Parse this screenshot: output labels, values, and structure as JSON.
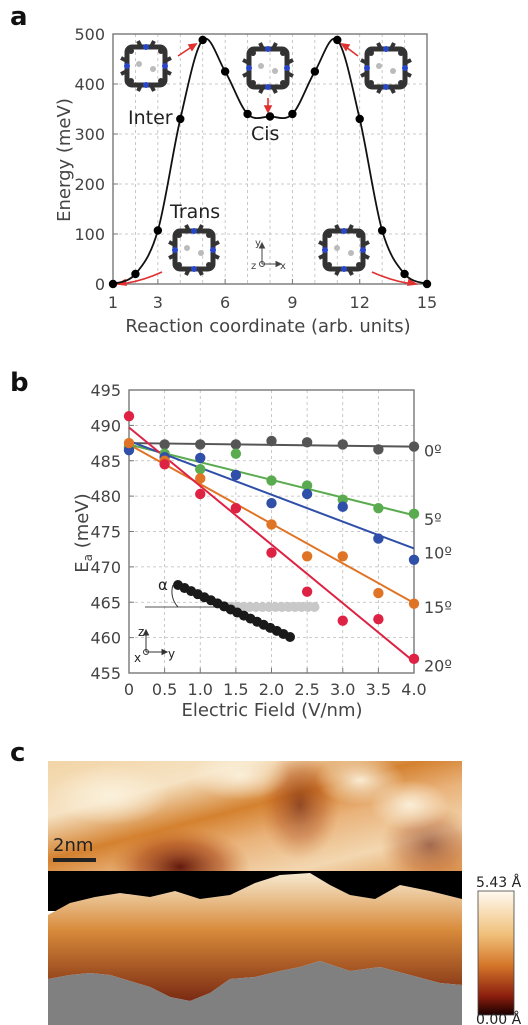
{
  "figure": {
    "labels": {
      "a": "a",
      "b": "b",
      "c": "c"
    }
  },
  "chart_data": [
    {
      "type": "line",
      "panel": "a",
      "xlabel": "Reaction coordinate (arb. units)",
      "ylabel": "Energy  (meV)",
      "xticks": [
        "1",
        "3",
        "6",
        "9",
        "12",
        "15"
      ],
      "yticks": [
        "0",
        "100",
        "200",
        "300",
        "400",
        "500"
      ],
      "xlim": [
        1,
        15
      ],
      "ylim": [
        0,
        500
      ],
      "grid": true,
      "x": [
        1,
        2,
        3,
        4,
        5,
        6,
        7,
        8,
        9,
        10,
        11,
        12,
        13,
        14,
        15
      ],
      "values": [
        0,
        20,
        107,
        330,
        488,
        425,
        340,
        335,
        340,
        425,
        488,
        330,
        107,
        20,
        0
      ],
      "annotations": {
        "inter": "Inter",
        "cis": "Cis",
        "trans": "Trans"
      },
      "axes_glyph": {
        "y": "y",
        "z": "z",
        "x": "x"
      }
    },
    {
      "type": "scatter",
      "panel": "b",
      "xlabel": "Electric Field (V/nm)",
      "ylabel": "E",
      "ylabel_sub": "a",
      "ylabel_unit": " (meV)",
      "xticks": [
        "0",
        "0.5",
        "1.0",
        "1.5",
        "2.0",
        "2.5",
        "3.0",
        "3.5",
        "4.0"
      ],
      "yticks": [
        "455",
        "460",
        "465",
        "470",
        "475",
        "480",
        "485",
        "490",
        "495"
      ],
      "xlim": [
        0,
        4
      ],
      "ylim": [
        455,
        495
      ],
      "grid": true,
      "x": [
        0,
        0.5,
        1.0,
        1.5,
        2.0,
        2.5,
        3.0,
        3.5,
        4.0
      ],
      "series": [
        {
          "name": "0º",
          "color": "#555555",
          "values": [
            486.8,
            487.3,
            487.3,
            487.3,
            487.8,
            487.6,
            487.3,
            486.6,
            487.0
          ],
          "fit": [
            487.5,
            487.0
          ]
        },
        {
          "name": "5º",
          "color": "#5aab4f",
          "values": [
            487.0,
            486.0,
            483.8,
            486.0,
            482.2,
            481.5,
            479.5,
            478.3,
            477.5
          ],
          "fit": [
            487.3,
            477.3
          ]
        },
        {
          "name": "10º",
          "color": "#2f4fa8",
          "values": [
            486.5,
            485.5,
            485.4,
            483.0,
            479.0,
            480.3,
            478.5,
            474.0,
            471.0
          ],
          "fit": [
            487.8,
            472.6
          ]
        },
        {
          "name": "15º",
          "color": "#e07426",
          "values": [
            487.5,
            485.0,
            482.5,
            478.3,
            476.0,
            471.5,
            471.5,
            466.3,
            464.8
          ],
          "fit": [
            487.3,
            464.9
          ]
        },
        {
          "name": "20º",
          "color": "#dd2244",
          "values": [
            491.3,
            484.5,
            480.3,
            478.3,
            472.0,
            466.5,
            462.4,
            462.6,
            457.0
          ],
          "fit": [
            489.7,
            456.6
          ]
        }
      ],
      "inset": {
        "alpha": "α",
        "z": "z",
        "x": "x",
        "y": "y"
      }
    },
    {
      "type": "heatmap",
      "panel": "c",
      "scalebar": "2nm",
      "colorbar_max": "5.43 Å",
      "colorbar_min": "0.00 Å"
    }
  ]
}
